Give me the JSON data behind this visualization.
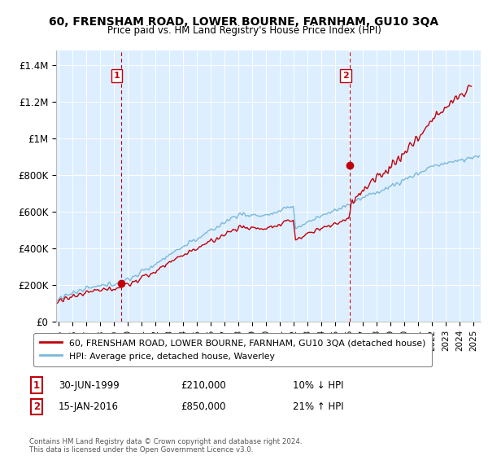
{
  "title": "60, FRENSHAM ROAD, LOWER BOURNE, FARNHAM, GU10 3QA",
  "subtitle": "Price paid vs. HM Land Registry's House Price Index (HPI)",
  "ylabel_ticks": [
    "£0",
    "£200K",
    "£400K",
    "£600K",
    "£800K",
    "£1M",
    "£1.2M",
    "£1.4M"
  ],
  "ytick_values": [
    0,
    200000,
    400000,
    600000,
    800000,
    1000000,
    1200000,
    1400000
  ],
  "ylim": [
    0,
    1480000
  ],
  "xlim_start": 1994.8,
  "xlim_end": 2025.5,
  "sale1": {
    "date": 1999.5,
    "price": 210000,
    "label": "1"
  },
  "sale2": {
    "date": 2016.04,
    "price": 850000,
    "label": "2"
  },
  "legend_entries": [
    "60, FRENSHAM ROAD, LOWER BOURNE, FARNHAM, GU10 3QA (detached house)",
    "HPI: Average price, detached house, Waverley"
  ],
  "annotation1_text": [
    "1",
    "30-JUN-1999",
    "£210,000",
    "10% ↓ HPI"
  ],
  "annotation2_text": [
    "2",
    "15-JAN-2016",
    "£850,000",
    "21% ↑ HPI"
  ],
  "footer": "Contains HM Land Registry data © Crown copyright and database right 2024.\nThis data is licensed under the Open Government Licence v3.0.",
  "hpi_color": "#7ab8d9",
  "price_color": "#c0000a",
  "sale_marker_color": "#c0000a",
  "dashed_line_color": "#c0000a",
  "bg_plot_color": "#ddeeff",
  "background_color": "#ffffff",
  "grid_color": "#ffffff"
}
